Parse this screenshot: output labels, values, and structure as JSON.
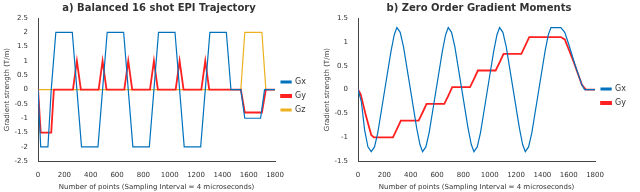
{
  "chart_data": [
    {
      "type": "line",
      "title": "a) Balanced 16 shot EPI Trajectory",
      "xlabel": "Number of points (Sampling Interval = 4 microseconds)",
      "ylabel": "Gradient strength (T/m)",
      "xlim": [
        0,
        1800
      ],
      "xticks": [
        0,
        200,
        400,
        600,
        800,
        1000,
        1200,
        1400,
        1600,
        1800
      ],
      "ylim": [
        -2.5,
        2.5
      ],
      "yticks": [
        -2.5,
        -2,
        -1.5,
        -1,
        -0.5,
        0,
        0.5,
        1,
        1.5,
        2,
        2.5
      ],
      "grid": false,
      "legend": "right",
      "series": [
        {
          "name": "Gx",
          "color": "#0072bd",
          "x": [
            0,
            20,
            75,
            100,
            135,
            260,
            295,
            330,
            455,
            490,
            525,
            650,
            685,
            720,
            845,
            880,
            915,
            1040,
            1075,
            1110,
            1235,
            1270,
            1305,
            1430,
            1465,
            1540,
            1570,
            1690,
            1720,
            1800
          ],
          "values": [
            0,
            -2,
            -2,
            0,
            2,
            2,
            0,
            -2,
            -2,
            0,
            2,
            2,
            0,
            -2,
            -2,
            0,
            2,
            2,
            0,
            -2,
            -2,
            0,
            2,
            2,
            0,
            0,
            -1,
            -1,
            0,
            0
          ]
        },
        {
          "name": "Gy",
          "color": "#ff2020",
          "x": [
            0,
            20,
            100,
            120,
            265,
            295,
            325,
            460,
            490,
            520,
            655,
            685,
            715,
            850,
            880,
            910,
            1045,
            1075,
            1105,
            1240,
            1270,
            1300,
            1540,
            1570,
            1700,
            1730,
            1800
          ],
          "values": [
            0,
            -1.5,
            -1.5,
            0,
            0,
            1,
            0,
            0,
            1,
            0,
            0,
            1,
            0,
            0,
            1,
            0,
            0,
            1,
            0,
            0,
            1,
            0,
            0,
            -0.8,
            -0.8,
            0,
            0
          ]
        },
        {
          "name": "Gz",
          "color": "#edb120",
          "x": [
            0,
            1540,
            1570,
            1700,
            1730,
            1800
          ],
          "values": [
            0,
            0,
            2,
            2,
            0,
            0
          ]
        }
      ]
    },
    {
      "type": "line",
      "title": "b) Zero Order Gradient Moments",
      "xlabel": "Number of points (Sampling Interval = 4 microseconds)",
      "ylabel": "Gradient strength (T/m)",
      "xlim": [
        0,
        1800
      ],
      "xticks": [
        0,
        200,
        400,
        600,
        800,
        1000,
        1200,
        1400,
        1600,
        1800
      ],
      "ylim": [
        -1.5,
        1.5
      ],
      "yticks": [
        -1.5,
        -1,
        -0.5,
        0,
        0.5,
        1,
        1.5
      ],
      "grid": false,
      "legend": "right",
      "series": [
        {
          "name": "Gx",
          "color": "#0072bd",
          "x": [
            0,
            25,
            50,
            75,
            100,
            125,
            150,
            200,
            250,
            275,
            295,
            320,
            345,
            395,
            445,
            470,
            490,
            515,
            540,
            590,
            640,
            665,
            685,
            710,
            735,
            785,
            835,
            860,
            880,
            905,
            930,
            980,
            1030,
            1055,
            1075,
            1100,
            1125,
            1175,
            1225,
            1250,
            1270,
            1295,
            1320,
            1370,
            1420,
            1445,
            1465,
            1540,
            1570,
            1600,
            1650,
            1700,
            1720,
            1800
          ],
          "values": [
            0,
            -0.25,
            -0.85,
            -1.2,
            -1.3,
            -1.2,
            -0.9,
            -0.05,
            0.8,
            1.15,
            1.3,
            1.2,
            0.9,
            0.05,
            -0.8,
            -1.15,
            -1.3,
            -1.2,
            -0.9,
            -0.05,
            0.8,
            1.15,
            1.3,
            1.2,
            0.9,
            0.05,
            -0.8,
            -1.15,
            -1.3,
            -1.2,
            -0.9,
            -0.05,
            0.8,
            1.15,
            1.3,
            1.2,
            0.9,
            0.05,
            -0.8,
            -1.15,
            -1.3,
            -1.2,
            -0.9,
            -0.05,
            0.8,
            1.15,
            1.3,
            1.3,
            1.2,
            0.95,
            0.5,
            0.1,
            0,
            0
          ]
        },
        {
          "name": "Gy",
          "color": "#ff2020",
          "x": [
            0,
            20,
            60,
            100,
            120,
            265,
            295,
            325,
            460,
            490,
            520,
            655,
            685,
            715,
            850,
            880,
            910,
            1045,
            1075,
            1105,
            1240,
            1270,
            1300,
            1540,
            1570,
            1635,
            1700,
            1730,
            1800
          ],
          "values": [
            0,
            -0.1,
            -0.55,
            -0.95,
            -1.0,
            -1.0,
            -0.83,
            -0.65,
            -0.65,
            -0.48,
            -0.3,
            -0.3,
            -0.13,
            0.05,
            0.05,
            0.22,
            0.4,
            0.4,
            0.57,
            0.75,
            0.75,
            0.92,
            1.1,
            1.1,
            1.05,
            0.6,
            0.1,
            0,
            0
          ]
        }
      ]
    }
  ]
}
